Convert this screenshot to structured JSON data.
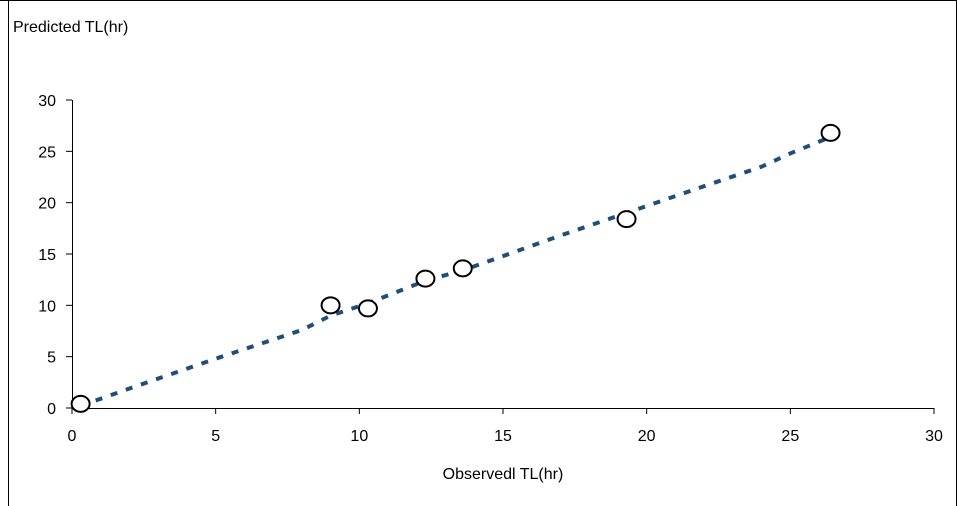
{
  "chart_data": {
    "type": "scatter",
    "title": "",
    "xlabel": "Observedl TL(hr)",
    "ylabel": "Predicted TL(hr)",
    "xlim": [
      0,
      30
    ],
    "ylim": [
      0,
      30
    ],
    "x_ticks": [
      0,
      5,
      10,
      15,
      20,
      25,
      30
    ],
    "y_ticks": [
      0,
      5,
      10,
      15,
      20,
      25,
      30
    ],
    "grid": false,
    "legend": "none",
    "series": [
      {
        "mode": "markers",
        "marker": "open-circle",
        "color": "#000000",
        "x": [
          0.3,
          9.0,
          10.3,
          12.3,
          13.6,
          19.3,
          26.4
        ],
        "y": [
          0.4,
          10.0,
          9.7,
          12.6,
          13.6,
          18.4,
          26.8
        ]
      },
      {
        "mode": "dashed-line",
        "color": "#1f4e79",
        "x": [
          0.3,
          2,
          5,
          8,
          9.0,
          10.3,
          12.3,
          13.6,
          15,
          17,
          19.3,
          22,
          24,
          25,
          26.4
        ],
        "y": [
          0.2,
          1.9,
          4.8,
          7.6,
          9.0,
          10.2,
          12.4,
          13.4,
          14.8,
          16.8,
          19.0,
          21.6,
          23.5,
          24.8,
          26.4
        ]
      }
    ]
  }
}
